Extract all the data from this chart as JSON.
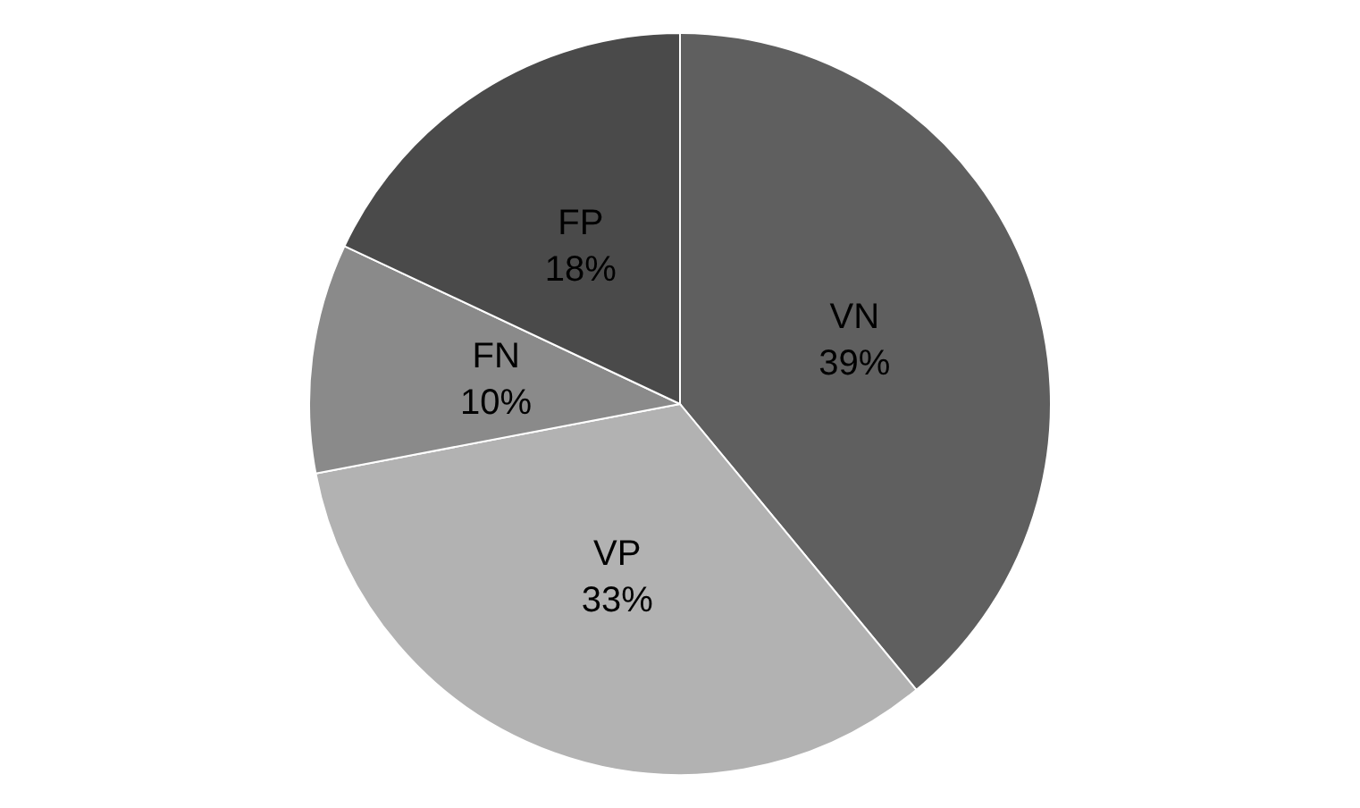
{
  "chart_data": {
    "type": "pie",
    "categories": [
      "VN",
      "VP",
      "FN",
      "FP"
    ],
    "values": [
      39,
      33,
      10,
      18
    ],
    "colors": [
      "#5f5f5f",
      "#b2b2b2",
      "#8a8a8a",
      "#4a4a4a"
    ],
    "value_labels": [
      "39%",
      "33%",
      "10%",
      "18%"
    ],
    "legend": false
  }
}
